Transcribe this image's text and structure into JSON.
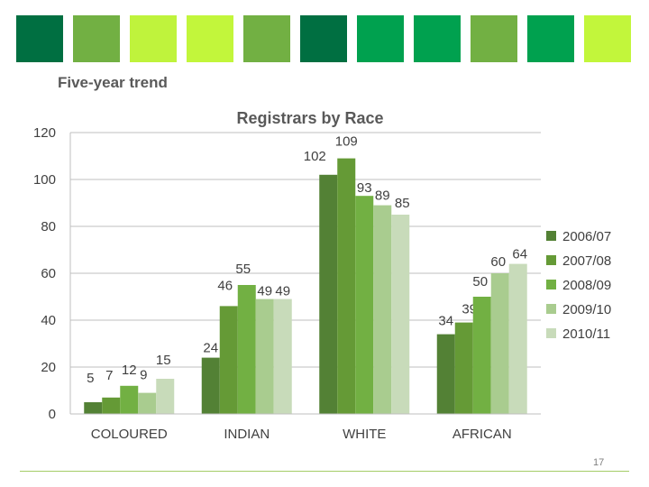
{
  "header": {
    "squares": [
      "#006f41",
      "#72b043",
      "#bff33c",
      "#c2f63b",
      "#72b043",
      "#006f41",
      "#00a14f",
      "#00a14f",
      "#72b043",
      "#00a14f",
      "#c2f63b"
    ],
    "subtitle": "Five-year trend"
  },
  "chart_data": {
    "type": "bar",
    "title": "Registrars by Race",
    "categories": [
      "COLOURED",
      "INDIAN",
      "WHITE",
      "AFRICAN"
    ],
    "series": [
      {
        "name": "2006/07",
        "color": "#538135",
        "values": [
          5,
          24,
          102,
          34
        ]
      },
      {
        "name": "2007/08",
        "color": "#659a36",
        "values": [
          7,
          46,
          109,
          39
        ]
      },
      {
        "name": "2008/09",
        "color": "#72b043",
        "values": [
          12,
          55,
          93,
          50
        ]
      },
      {
        "name": "2009/10",
        "color": "#a9cc8f",
        "values": [
          9,
          49,
          89,
          60
        ]
      },
      {
        "name": "2010/11",
        "color": "#c8dbba",
        "values": [
          15,
          49,
          85,
          64
        ]
      }
    ],
    "yticks": [
      0,
      20,
      40,
      60,
      80,
      100,
      120
    ],
    "ylim": [
      0,
      120
    ],
    "grid": true,
    "legend": "right"
  },
  "footer": {
    "page_number": "17"
  }
}
